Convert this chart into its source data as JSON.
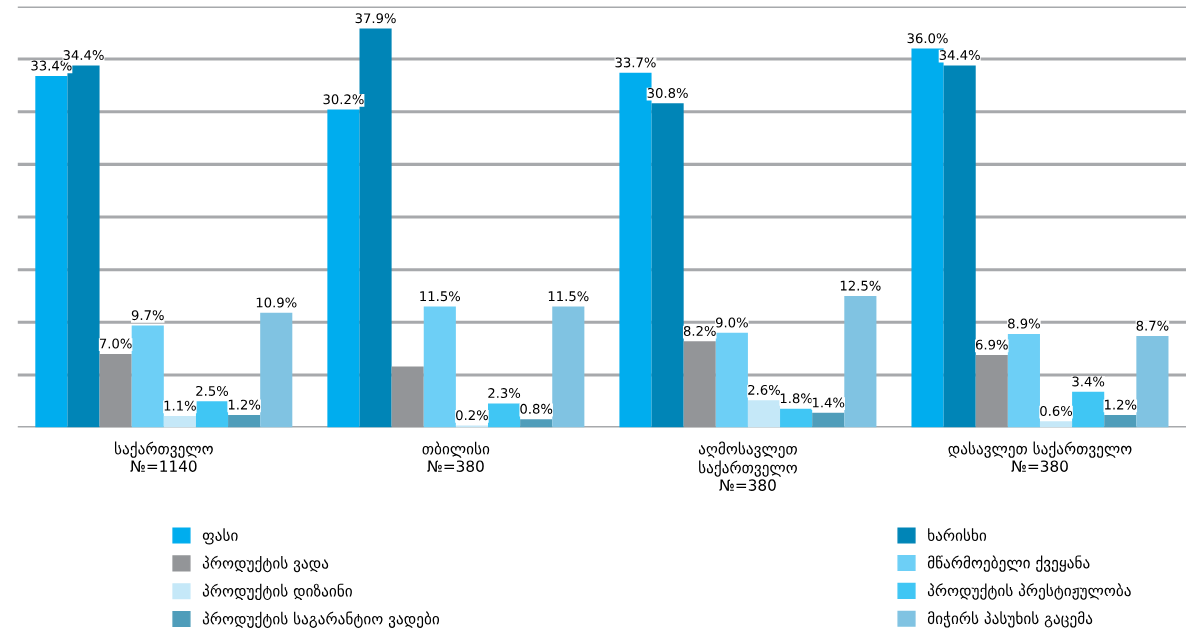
{
  "chart_data": {
    "type": "bar",
    "categories": [
      "საქართველო\n№=1140",
      "თბილისი\n№=380",
      "აღმოსავლეთ\nსაქართველო\n№=380",
      "დასავლეთ საქართველო\n№=380"
    ],
    "series": [
      {
        "name": "ფასი",
        "color": "#00adee",
        "values": [
          33.4,
          30.2,
          33.7,
          36.0
        ],
        "value_labels": [
          "33.4%",
          "30.2%",
          "33.7%",
          "36.0%"
        ]
      },
      {
        "name": "ხარისხი",
        "color": "#0085b7",
        "values": [
          34.4,
          37.9,
          30.8,
          34.4
        ],
        "value_labels": [
          "34.4%",
          "37.9%",
          "30.8%",
          "34.4%"
        ]
      },
      {
        "name": "პროდუქტის ვადა",
        "color": "#939598",
        "values": [
          7.0,
          5.8,
          8.2,
          6.9
        ],
        "value_labels": [
          "7.0%",
          null,
          "8.2%",
          "6.9%"
        ]
      },
      {
        "name": "მწარმოებელი ქვეყანა",
        "color": "#6dcff6",
        "values": [
          9.7,
          11.5,
          9.0,
          8.9
        ],
        "value_labels": [
          "9.7%",
          "11.5%",
          "9.0%",
          "8.9%"
        ]
      },
      {
        "name": "პროდუქტის დიზაინი",
        "color": "#c5e8f8",
        "values": [
          1.1,
          0.2,
          2.6,
          0.6
        ],
        "value_labels": [
          "1.1%",
          "0.2%",
          "2.6%",
          "0.6%"
        ]
      },
      {
        "name": "პროდუქტის პრესტიჟულობა",
        "color": "#40c6f4",
        "values": [
          2.5,
          2.3,
          1.8,
          3.4
        ],
        "value_labels": [
          "2.5%",
          "2.3%",
          "1.8%",
          "3.4%"
        ]
      },
      {
        "name": "პროდუქტის საგარანტიო ვადები",
        "color": "#4f9dba",
        "values": [
          1.2,
          0.8,
          1.4,
          1.2
        ],
        "value_labels": [
          "1.2%",
          "0.8%",
          "1.4%",
          "1.2%"
        ]
      },
      {
        "name": "მიჭირს პასუხის გაცემა",
        "color": "#80c3e2",
        "values": [
          10.9,
          11.5,
          12.5,
          8.7
        ],
        "value_labels": [
          "10.9%",
          "11.5%",
          "12.5%",
          "8.7%"
        ]
      }
    ],
    "ylim": [
      0,
      40
    ],
    "yticks": [
      {
        "value": 0,
        "label": null
      },
      {
        "value": 5,
        "label": null
      },
      {
        "value": 10,
        "label": null
      },
      {
        "value": 15,
        "label": null
      },
      {
        "value": 20,
        "label": null
      },
      {
        "value": 25,
        "label": null
      },
      {
        "value": 30,
        "label": null
      },
      {
        "value": 35,
        "label": null
      },
      {
        "value": 40,
        "label": null
      }
    ],
    "tick_labels": "x",
    "grid": "y",
    "legend": "bottom"
  }
}
